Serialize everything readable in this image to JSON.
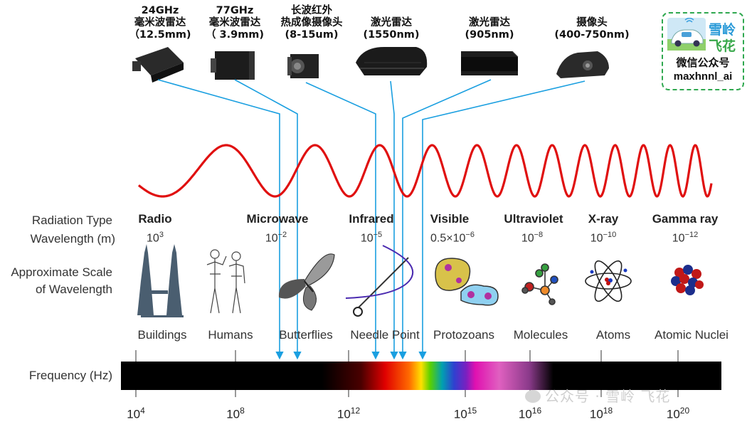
{
  "sensors": [
    {
      "line1": "24GHz",
      "line2": "毫米波雷达",
      "line3": "（12.5mm)"
    },
    {
      "line1": "77GHz",
      "line2": "毫米波雷达",
      "line3": "（ 3.9mm)"
    },
    {
      "line1": "长波红外",
      "line2": "热成像摄像头",
      "line3": "(8-15um)"
    },
    {
      "line1": "",
      "line2": "激光雷达",
      "line3": "(1550nm)"
    },
    {
      "line1": "",
      "line2": "激光雷达",
      "line3": "(905nm)"
    },
    {
      "line1": "",
      "line2": "摄像头",
      "line3": "(400-750nm)"
    }
  ],
  "wechat": {
    "brand_line1": "雪岭",
    "brand_line2": "飞花",
    "line1": "微信公众号",
    "line2": "maxhnnl_ai"
  },
  "row_labels": {
    "radiation_type": "Radiation Type",
    "wavelength": "Wavelength (m)",
    "scale_line1": "Approximate Scale",
    "scale_line2": "of Wavelength",
    "frequency": "Frequency (Hz)"
  },
  "bands": [
    {
      "name": "Radio",
      "wl_base": "10",
      "wl_exp": "3"
    },
    {
      "name": "Microwave",
      "wl_base": "10",
      "wl_exp": "−2"
    },
    {
      "name": "Infrared",
      "wl_base": "10",
      "wl_exp": "−5"
    },
    {
      "name": "Visible",
      "wl_base": "0.5×10",
      "wl_exp": "−6"
    },
    {
      "name": "Ultraviolet",
      "wl_base": "10",
      "wl_exp": "−8"
    },
    {
      "name": "X-ray",
      "wl_base": "10",
      "wl_exp": "−10"
    },
    {
      "name": "Gamma ray",
      "wl_base": "10",
      "wl_exp": "−12"
    }
  ],
  "scales": [
    "Buildings",
    "Humans",
    "Butterflies",
    "Needle Point",
    "Protozoans",
    "Molecules",
    "Atoms",
    "Atomic Nuclei"
  ],
  "freq_ticks": [
    {
      "base": "10",
      "exp": "4"
    },
    {
      "base": "10",
      "exp": "8"
    },
    {
      "base": "10",
      "exp": "12"
    },
    {
      "base": "10",
      "exp": "15"
    },
    {
      "base": "10",
      "exp": "16"
    },
    {
      "base": "10",
      "exp": "18"
    },
    {
      "base": "10",
      "exp": "20"
    }
  ],
  "watermark": "公众号 · 雪岭 飞花",
  "colors": {
    "wave": "#e01010",
    "connector": "#1a9fe0",
    "frame": "#2fa84f",
    "bar": "#000000"
  }
}
